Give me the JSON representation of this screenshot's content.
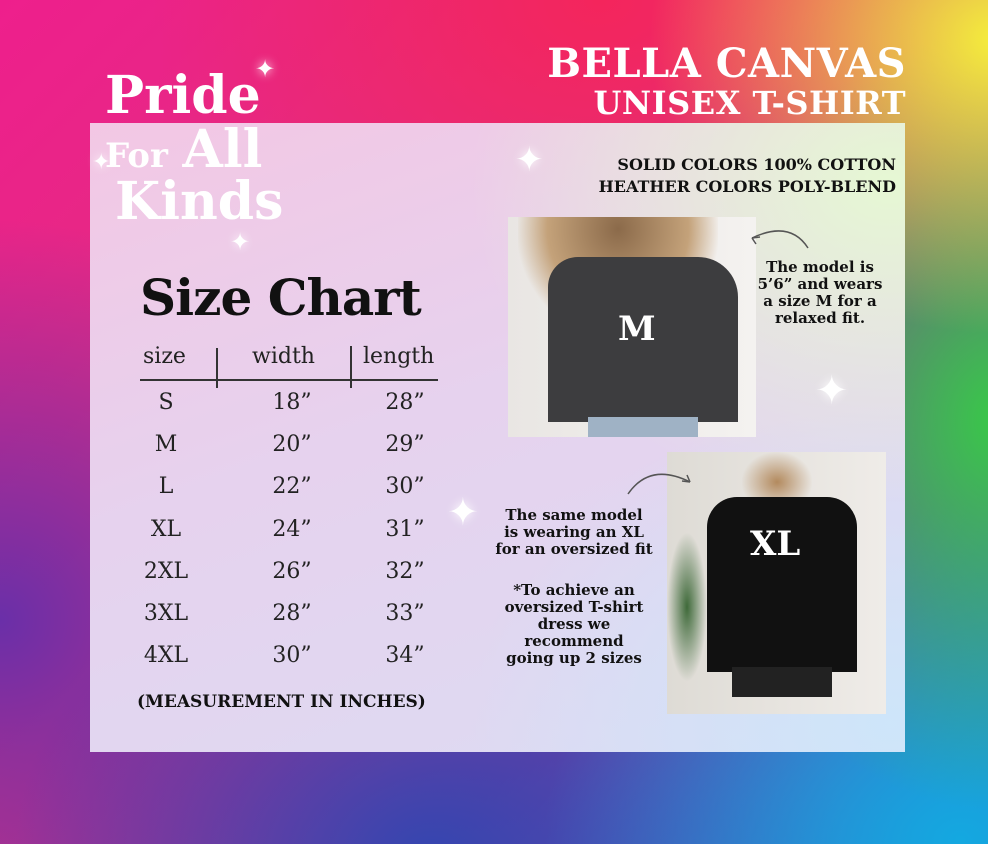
{
  "logo": {
    "line1": "Pride",
    "line2a": "For",
    "line2b": "All",
    "line3": "Kinds"
  },
  "brand": {
    "line1": "BELLA CANVAS",
    "line2": "UNISEX T-SHIRT"
  },
  "material": {
    "line1": "SOLID COLORS 100% COTTON",
    "line2": "HEATHER COLORS POLY-BLEND"
  },
  "title": "Size Chart",
  "table": {
    "headers": [
      "size",
      "width",
      "length"
    ],
    "rows": [
      [
        "S",
        "18”",
        "28”"
      ],
      [
        "M",
        "20”",
        "29”"
      ],
      [
        "L",
        "22”",
        "30”"
      ],
      [
        "XL",
        "24”",
        "31”"
      ],
      [
        "2XL",
        "26”",
        "32”"
      ],
      [
        "3XL",
        "28”",
        "33”"
      ],
      [
        "4XL",
        "30”",
        "34”"
      ]
    ]
  },
  "footnote": "(MEASUREMENT IN INCHES)",
  "photo_m": {
    "label": "M",
    "note": [
      "The model is",
      "5’6” and wears",
      "a size M for a",
      "relaxed fit."
    ]
  },
  "photo_xl": {
    "label": "XL",
    "note": [
      "The same model",
      "is wearing an XL",
      "for an oversized fit"
    ],
    "tip": [
      "*To achieve an",
      "oversized T-shirt",
      "dress we",
      "recommend",
      "going up 2 sizes"
    ]
  }
}
